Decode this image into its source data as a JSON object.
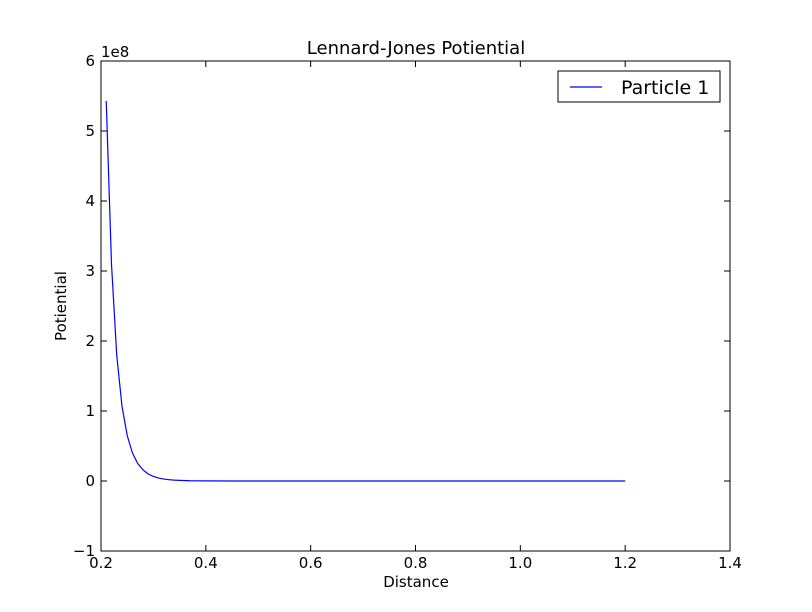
{
  "chart_data": {
    "type": "line",
    "title": "Lennard-Jones Potiential",
    "xlabel": "Distance",
    "ylabel": "Potiential",
    "y_offset_label": "1e8",
    "xlim": [
      0.2,
      1.4
    ],
    "ylim": [
      -1,
      6
    ],
    "y_scale_exponent": 8,
    "x_ticks": [
      "0.2",
      "0.4",
      "0.6",
      "0.8",
      "1.0",
      "1.2",
      "1.4"
    ],
    "y_ticks": [
      "−1",
      "0",
      "1",
      "2",
      "3",
      "4",
      "5",
      "6"
    ],
    "grid": false,
    "legend_position": "top-right",
    "series": [
      {
        "name": "Particle 1",
        "color": "#0000ff",
        "x": [
          0.21,
          0.22,
          0.23,
          0.24,
          0.25,
          0.26,
          0.27,
          0.28,
          0.29,
          0.3,
          0.31,
          0.32,
          0.33,
          0.34,
          0.35,
          0.37,
          0.4,
          0.45,
          0.5,
          0.6,
          0.7,
          0.8,
          0.9,
          1.0,
          1.1,
          1.2
        ],
        "y": [
          5.43,
          3.1,
          1.8,
          1.07,
          0.65,
          0.4,
          0.25,
          0.16,
          0.1,
          0.065,
          0.042,
          0.028,
          0.019,
          0.013,
          0.009,
          0.004,
          0.0017,
          0.0005,
          0.0002,
          0.0,
          0.0,
          0.0,
          0.0,
          0.0,
          0.0,
          0.0
        ]
      }
    ]
  }
}
